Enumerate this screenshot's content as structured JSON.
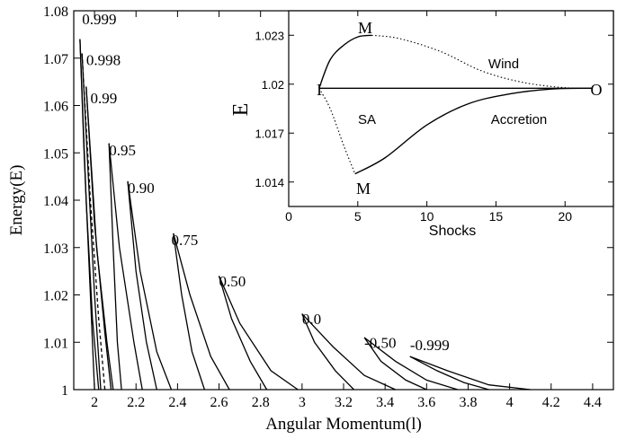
{
  "chart_data": [
    {
      "type": "line",
      "xlabel": "Angular Momentum(l)",
      "ylabel": "Energy(E)",
      "xlim": [
        1.9,
        4.5
      ],
      "ylim": [
        1.0,
        1.08
      ],
      "xticks": [
        "2",
        "2.2",
        "2.4",
        "2.6",
        "2.8",
        "3",
        "3.2",
        "3.4",
        "3.6",
        "3.8",
        "4",
        "4.2",
        "4.4"
      ],
      "yticks": [
        "1",
        "1.01",
        "1.02",
        "1.03",
        "1.04",
        "1.05",
        "1.06",
        "1.07",
        "1.08"
      ],
      "series": [
        {
          "name": "0.999",
          "label_at": [
            1.94,
            1.0772
          ],
          "upper": [
            [
              1.93,
              1.074
            ],
            [
              1.95,
              1.05
            ],
            [
              1.98,
              1.02
            ],
            [
              2.0,
              1.0
            ]
          ],
          "lower": [
            [
              1.93,
              1.074
            ],
            [
              1.96,
              1.04
            ],
            [
              1.99,
              1.015
            ],
            [
              2.02,
              1.0
            ]
          ]
        },
        {
          "name": "0.998",
          "label_at": [
            1.96,
            1.0685
          ],
          "upper": [
            [
              1.94,
              1.071
            ],
            [
              1.97,
              1.045
            ],
            [
              2.0,
              1.02
            ],
            [
              2.03,
              1.0
            ]
          ],
          "lower": [
            [
              1.94,
              1.071
            ],
            [
              1.98,
              1.04
            ],
            [
              2.02,
              1.015
            ],
            [
              2.05,
              1.0
            ]
          ]
        },
        {
          "name": "0.99",
          "label_at": [
            1.98,
            1.0605
          ],
          "upper": [
            [
              1.96,
              1.064
            ],
            [
              2.0,
              1.035
            ],
            [
              2.05,
              1.012
            ],
            [
              2.08,
              1.0
            ]
          ],
          "lower": [
            [
              1.96,
              1.064
            ],
            [
              2.01,
              1.03
            ],
            [
              2.06,
              1.01
            ],
            [
              2.09,
              1.0
            ]
          ]
        },
        {
          "name": "0.95",
          "label_at": [
            2.07,
            1.0495
          ],
          "upper": [
            [
              2.07,
              1.052
            ],
            [
              2.12,
              1.03
            ],
            [
              2.19,
              1.01
            ],
            [
              2.23,
              1.0
            ]
          ],
          "lower": [
            [
              2.07,
              1.052
            ],
            [
              2.09,
              1.03
            ],
            [
              2.11,
              1.01
            ],
            [
              2.13,
              1.0
            ]
          ]
        },
        {
          "name": "0.90",
          "label_at": [
            2.16,
            1.0415
          ],
          "upper": [
            [
              2.16,
              1.044
            ],
            [
              2.22,
              1.025
            ],
            [
              2.3,
              1.008
            ],
            [
              2.37,
              1.0
            ]
          ],
          "lower": [
            [
              2.16,
              1.044
            ],
            [
              2.2,
              1.025
            ],
            [
              2.25,
              1.01
            ],
            [
              2.3,
              1.0
            ]
          ]
        },
        {
          "name": "0.75",
          "label_at": [
            2.37,
            1.0305
          ],
          "upper": [
            [
              2.38,
              1.033
            ],
            [
              2.46,
              1.02
            ],
            [
              2.56,
              1.007
            ],
            [
              2.65,
              1.0
            ]
          ],
          "lower": [
            [
              2.38,
              1.033
            ],
            [
              2.42,
              1.02
            ],
            [
              2.47,
              1.008
            ],
            [
              2.53,
              1.0
            ]
          ]
        },
        {
          "name": "0.50",
          "label_at": [
            2.6,
            1.0218
          ],
          "upper": [
            [
              2.6,
              1.024
            ],
            [
              2.7,
              1.014
            ],
            [
              2.85,
              1.004
            ],
            [
              2.98,
              1.0
            ]
          ],
          "lower": [
            [
              2.6,
              1.024
            ],
            [
              2.66,
              1.015
            ],
            [
              2.75,
              1.006
            ],
            [
              2.83,
              1.0
            ]
          ]
        },
        {
          "name": "0.0",
          "label_at": [
            3.0,
            1.0138
          ],
          "upper": [
            [
              3.0,
              1.016
            ],
            [
              3.15,
              1.009
            ],
            [
              3.3,
              1.003
            ],
            [
              3.45,
              1.0
            ]
          ],
          "lower": [
            [
              3.0,
              1.016
            ],
            [
              3.06,
              1.01
            ],
            [
              3.16,
              1.004
            ],
            [
              3.25,
              1.0
            ]
          ]
        },
        {
          "name": "-0.50",
          "label_at": [
            3.3,
            1.0088
          ],
          "upper": [
            [
              3.3,
              1.011
            ],
            [
              3.45,
              1.006
            ],
            [
              3.6,
              1.002
            ],
            [
              3.75,
              1.0
            ]
          ],
          "lower": [
            [
              3.3,
              1.011
            ],
            [
              3.38,
              1.006
            ],
            [
              3.5,
              1.002
            ],
            [
              3.6,
              1.0
            ]
          ]
        },
        {
          "name": "-0.999",
          "label_at": [
            3.52,
            1.0083
          ],
          "upper": [
            [
              3.52,
              1.007
            ],
            [
              3.7,
              1.004
            ],
            [
              3.9,
              1.001
            ],
            [
              4.1,
              1.0
            ]
          ],
          "lower": [
            [
              3.52,
              1.007
            ],
            [
              3.65,
              1.004
            ],
            [
              3.78,
              1.0015
            ],
            [
              3.9,
              1.0
            ]
          ]
        }
      ]
    },
    {
      "type": "line",
      "xlabel": "Shocks",
      "ylabel": "E",
      "xlim": [
        0,
        23.5
      ],
      "ylim": [
        1.0125,
        1.0245
      ],
      "xticks": [
        "0",
        "5",
        "10",
        "15",
        "20"
      ],
      "yticks": [
        "1.014",
        "1.017",
        "1.02",
        "1.023"
      ],
      "annotations": [
        "M",
        "M",
        "I",
        "O",
        "Wind",
        "SA",
        "Accretion"
      ],
      "series": [
        {
          "style": "solid",
          "points": [
            [
              2.2,
              1.01975
            ],
            [
              3,
              1.0215
            ],
            [
              4,
              1.0224
            ],
            [
              5,
              1.0229
            ],
            [
              6,
              1.023
            ]
          ]
        },
        {
          "style": "dotted",
          "points": [
            [
              6,
              1.023
            ],
            [
              8,
              1.0228
            ],
            [
              11,
              1.022
            ],
            [
              14,
              1.0208
            ],
            [
              17,
              1.0201
            ],
            [
              20,
              1.01978
            ],
            [
              22,
              1.01975
            ]
          ]
        },
        {
          "style": "dotted",
          "points": [
            [
              2.2,
              1.01975
            ],
            [
              3,
              1.0185
            ],
            [
              4,
              1.0162
            ],
            [
              4.8,
              1.0145
            ]
          ]
        },
        {
          "style": "solid",
          "points": [
            [
              4.8,
              1.0145
            ],
            [
              7,
              1.0155
            ],
            [
              10,
              1.0175
            ],
            [
              13,
              1.0188
            ],
            [
              16,
              1.0194
            ],
            [
              19,
              1.0197
            ],
            [
              22,
              1.01975
            ]
          ]
        },
        {
          "style": "solid",
          "points": [
            [
              2.2,
              1.01975
            ],
            [
              22,
              1.01975
            ]
          ]
        }
      ]
    }
  ]
}
